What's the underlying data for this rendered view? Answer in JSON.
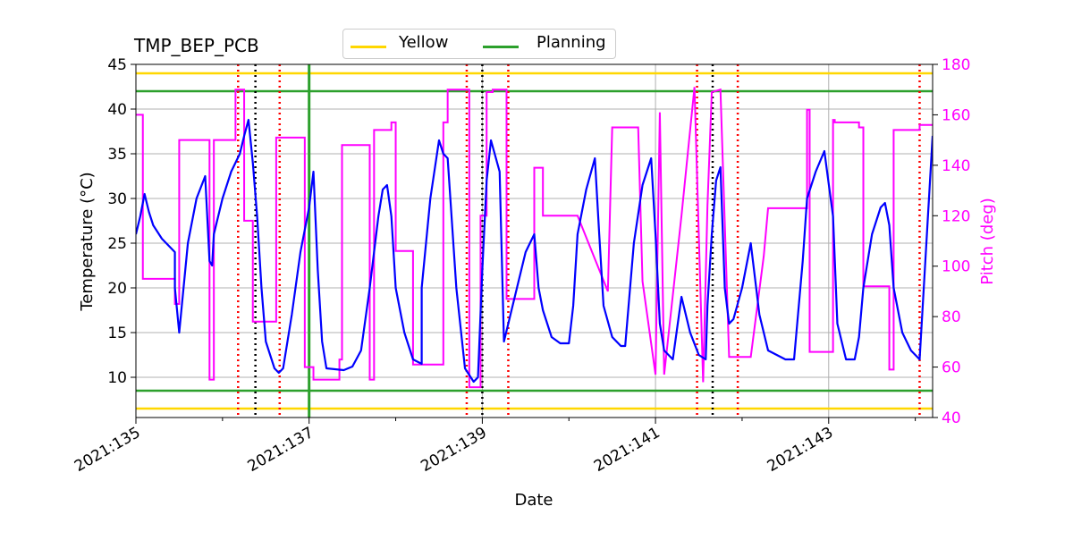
{
  "chart_data": {
    "type": "line",
    "title": "TMP_BEP_PCB",
    "xlabel": "Date",
    "ylabel_left": "Temperature ($^\\circ$C)",
    "ylabel_left_display": "Temperature (°C)",
    "ylabel_right": "Pitch (deg)",
    "xlim": [
      135.0,
      144.2
    ],
    "ylim_left": [
      5.5,
      45
    ],
    "ylim_right": [
      40,
      180
    ],
    "x_tick_values": [
      135,
      137,
      139,
      141,
      143
    ],
    "x_tick_labels": [
      "2021:135",
      "2021:137",
      "2021:139",
      "2021:141",
      "2021:143"
    ],
    "y_left_ticks": [
      10,
      15,
      20,
      25,
      30,
      35,
      40,
      45
    ],
    "y_right_ticks": [
      40,
      60,
      80,
      100,
      120,
      140,
      160,
      180
    ],
    "grid": true,
    "legend_position": "top-center",
    "colors": {
      "temperature": "#0000ff",
      "pitch": "#ff00ff",
      "yellow": "#ffd700",
      "planning": "#2ca02c",
      "red_marker": "#ff0000",
      "black_marker": "#000000",
      "grid": "#b0b0b0",
      "right_axis": "#ff00ff"
    },
    "legend": [
      {
        "label": "Yellow",
        "color": "#ffd700"
      },
      {
        "label": "Planning",
        "color": "#2ca02c"
      }
    ],
    "hlines": [
      {
        "kind": "yellow",
        "value": 44.0
      },
      {
        "kind": "yellow",
        "value": 6.5
      },
      {
        "kind": "planning",
        "value": 42.0
      },
      {
        "kind": "planning",
        "value": 8.5
      }
    ],
    "vline_now": 137.0,
    "red_dotted_x": [
      136.18,
      136.66,
      138.82,
      139.3,
      141.48,
      141.95,
      144.05
    ],
    "black_dotted_x": [
      136.38,
      139.0,
      141.66
    ],
    "temperature_series": {
      "x": [
        135.0,
        135.05,
        135.1,
        135.15,
        135.2,
        135.3,
        135.45,
        135.45,
        135.5,
        135.55,
        135.6,
        135.7,
        135.8,
        135.85,
        135.88,
        135.9,
        136.0,
        136.1,
        136.2,
        136.25,
        136.3,
        136.35,
        136.4,
        136.45,
        136.5,
        136.6,
        136.65,
        136.7,
        136.8,
        136.9,
        137.0,
        137.05,
        137.1,
        137.15,
        137.2,
        137.4,
        137.5,
        137.6,
        137.7,
        137.7,
        137.8,
        137.85,
        137.9,
        137.95,
        138.0,
        138.1,
        138.2,
        138.3,
        138.3,
        138.4,
        138.5,
        138.55,
        138.6,
        138.7,
        138.8,
        138.9,
        138.95,
        139.0,
        139.05,
        139.1,
        139.2,
        139.25,
        139.3,
        139.4,
        139.5,
        139.6,
        139.65,
        139.7,
        139.8,
        139.9,
        140.0,
        140.05,
        140.1,
        140.2,
        140.3,
        140.35,
        140.4,
        140.5,
        140.6,
        140.65,
        140.75,
        140.85,
        140.95,
        141.0,
        141.05,
        141.1,
        141.2,
        141.3,
        141.4,
        141.5,
        141.58,
        141.6,
        141.65,
        141.7,
        141.75,
        141.8,
        141.85,
        141.9,
        142.0,
        142.1,
        142.2,
        142.3,
        142.5,
        142.6,
        142.7,
        142.75,
        142.85,
        142.95,
        143.05,
        143.1,
        143.2,
        143.3,
        143.35,
        143.4,
        143.5,
        143.6,
        143.65,
        143.7,
        143.75,
        143.85,
        143.95,
        144.05,
        144.2
      ],
      "y": [
        26.0,
        28.0,
        30.5,
        28.5,
        27.0,
        25.5,
        24.0,
        20.0,
        15.0,
        20.0,
        25.0,
        30.0,
        32.5,
        23.0,
        22.5,
        26.0,
        30.0,
        33.0,
        35.0,
        37.0,
        38.8,
        34.0,
        28.0,
        20.0,
        14.0,
        11.0,
        10.5,
        11.0,
        17.0,
        24.0,
        29.0,
        33.0,
        22.0,
        14.0,
        11.0,
        10.8,
        11.2,
        13.0,
        20.0,
        20.0,
        28.0,
        31.0,
        31.5,
        28.0,
        20.0,
        15.0,
        12.0,
        11.5,
        20.0,
        30.0,
        36.5,
        35.0,
        34.5,
        20.0,
        11.0,
        9.5,
        10.0,
        22.0,
        32.0,
        36.5,
        33.0,
        14.0,
        16.0,
        20.0,
        24.0,
        26.0,
        20.0,
        17.5,
        14.5,
        13.8,
        13.8,
        18.0,
        26.0,
        31.0,
        34.5,
        26.0,
        18.0,
        14.5,
        13.5,
        13.5,
        25.0,
        31.5,
        34.5,
        26.0,
        16.0,
        13.0,
        12.0,
        19.0,
        15.0,
        12.5,
        12.0,
        18.0,
        26.0,
        32.0,
        33.5,
        20.0,
        16.0,
        16.5,
        20.0,
        25.0,
        17.0,
        13.0,
        12.0,
        12.0,
        23.0,
        30.0,
        33.0,
        35.3,
        28.0,
        16.0,
        12.0,
        12.0,
        14.5,
        20.0,
        26.0,
        29.0,
        29.5,
        27.0,
        20.0,
        15.0,
        13.0,
        12.0,
        37.0
      ]
    },
    "pitch_series": {
      "x": [
        135.0,
        135.04,
        135.04,
        135.08,
        135.08,
        135.45,
        135.45,
        135.5,
        135.5,
        135.55,
        135.55,
        135.85,
        135.85,
        135.88,
        135.88,
        135.9,
        135.9,
        136.15,
        136.15,
        136.25,
        136.25,
        136.35,
        136.35,
        136.55,
        136.55,
        136.62,
        136.62,
        136.95,
        136.95,
        137.05,
        137.05,
        137.15,
        137.15,
        137.35,
        137.35,
        137.38,
        137.38,
        137.7,
        137.7,
        137.75,
        137.75,
        137.95,
        137.95,
        138.0,
        138.0,
        138.2,
        138.2,
        138.35,
        138.35,
        138.55,
        138.55,
        138.6,
        138.6,
        138.85,
        138.85,
        138.98,
        138.98,
        139.0,
        139.0,
        139.05,
        139.05,
        139.12,
        139.12,
        139.28,
        139.28,
        139.6,
        139.6,
        139.7,
        139.7,
        139.7,
        140.1,
        140.1,
        140.45,
        140.45,
        140.5,
        140.5,
        140.8,
        140.8,
        140.85,
        140.85,
        141.0,
        141.0,
        141.05,
        141.05,
        141.1,
        141.1,
        141.3,
        141.3,
        141.45,
        141.45,
        141.55,
        141.55,
        141.6,
        141.6,
        141.65,
        141.65,
        141.75,
        141.75,
        141.85,
        141.85,
        141.95,
        141.95,
        142.1,
        142.25,
        142.25,
        142.3,
        142.3,
        142.75,
        142.75,
        142.78,
        142.78,
        143.05,
        143.05,
        143.07,
        143.07,
        143.35,
        143.35,
        143.4,
        143.4,
        143.6,
        143.6,
        143.7,
        143.7,
        143.75,
        143.75,
        144.05,
        144.05,
        144.2
      ],
      "y": [
        160,
        160,
        160,
        160,
        95,
        95,
        85,
        85,
        150,
        150,
        150,
        150,
        55,
        55,
        55,
        55,
        150,
        150,
        170,
        170,
        118,
        118,
        78,
        78,
        78,
        78,
        151,
        151,
        60,
        60,
        55,
        55,
        55,
        55,
        63,
        63,
        148,
        148,
        55,
        55,
        154,
        154,
        157,
        157,
        106,
        106,
        61,
        61,
        61,
        61,
        157,
        157,
        170,
        170,
        52,
        52,
        120,
        120,
        120,
        120,
        169,
        169,
        170,
        170,
        87,
        87,
        139,
        139,
        120,
        120,
        120,
        120,
        90,
        90,
        155,
        155,
        155,
        155,
        94,
        94,
        57,
        57,
        161,
        161,
        57,
        57,
        120,
        120,
        171,
        171,
        54,
        54,
        124,
        124,
        169,
        169,
        170,
        170,
        64,
        64,
        64,
        64,
        64,
        104,
        104,
        123,
        123,
        123,
        162,
        162,
        66,
        66,
        158,
        158,
        157,
        157,
        155,
        155,
        92,
        92,
        92,
        92,
        59,
        59,
        154,
        154,
        156,
        156
      ]
    }
  }
}
